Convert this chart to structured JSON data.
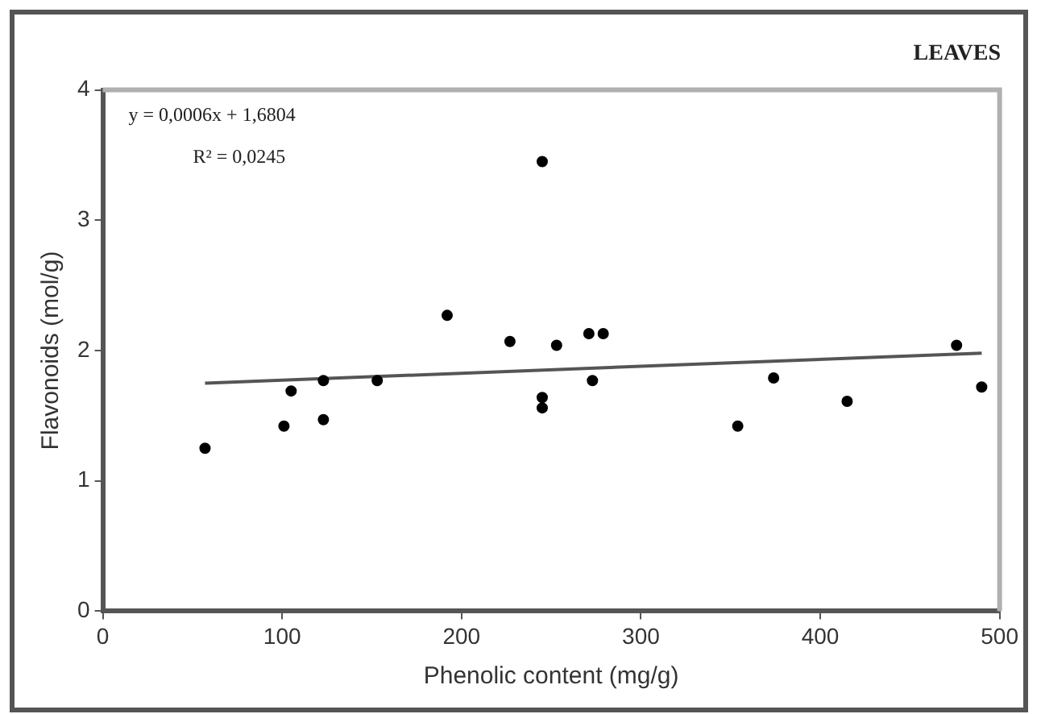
{
  "chart_data": {
    "type": "scatter",
    "title": "LEAVES",
    "xlabel": "Phenolic content (mg/g)",
    "ylabel": "Flavonoids (mol/g)",
    "annotations": [
      "y = 0,0006x + 1,6804",
      "R² = 0,0245"
    ],
    "xlim": [
      0,
      500
    ],
    "xticks": [
      0,
      100,
      200,
      300,
      400,
      500
    ],
    "ylim": [
      0,
      4
    ],
    "yticks": [
      0,
      1,
      2,
      3,
      4
    ],
    "grid": false,
    "legend": false,
    "series": [
      {
        "marker": "circle",
        "color": "#000000",
        "x": [
          57,
          101,
          105,
          123,
          123,
          153,
          192,
          227,
          245,
          245,
          245,
          253,
          271,
          279,
          273,
          354,
          374,
          415,
          476,
          490
        ],
        "values": [
          1.25,
          1.42,
          1.69,
          1.77,
          1.47,
          1.77,
          2.27,
          2.07,
          3.45,
          1.64,
          1.56,
          2.04,
          2.13,
          2.13,
          1.77,
          1.42,
          1.79,
          1.61,
          2.04,
          1.72
        ]
      },
      {
        "type": "line",
        "marker": "none",
        "color": "#555555",
        "x": [
          57,
          490
        ],
        "values": [
          1.75,
          1.98
        ]
      }
    ]
  }
}
